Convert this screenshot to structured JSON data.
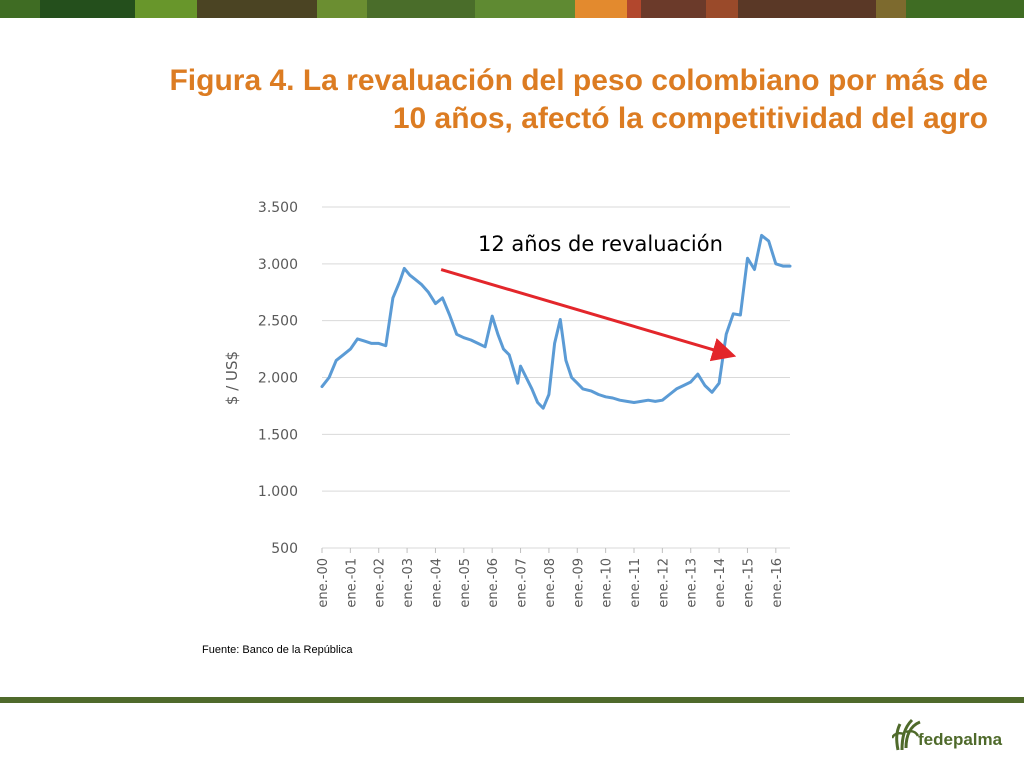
{
  "title_lines": [
    "Figura 4. La revaluación del peso colombiano por más de",
    "10 años, afectó la competitividad del agro"
  ],
  "source": "Fuente: Banco de la República",
  "brand": {
    "name": "fedepalma",
    "color": "#4f6a2b"
  },
  "colors": {
    "title": "#dc7c22",
    "line": "#5b9bd5",
    "arrow": "#e3262b",
    "stripes": [
      "#3f6c23",
      "#244f1c",
      "#68962b",
      "#4b4423",
      "#6b8e31",
      "#4a6d2a",
      "#5f8a32",
      "#e38a2e",
      "#b2472d",
      "#6b3a2a",
      "#9a4a2a",
      "#5a3826",
      "#7d6a2e"
    ]
  },
  "chart_data": {
    "type": "line",
    "title": "",
    "xlabel": "",
    "ylabel": "$ / US$",
    "ylim": [
      500,
      3500
    ],
    "yticks": [
      500,
      1000,
      1500,
      2000,
      2500,
      3000,
      3500
    ],
    "ytick_labels": [
      "500",
      "1.000",
      "1.500",
      "2.000",
      "2.500",
      "3.000",
      "3.500"
    ],
    "xtick_labels": [
      "ene.-00",
      "ene.-01",
      "ene.-02",
      "ene.-03",
      "ene.-04",
      "ene.-05",
      "ene.-06",
      "ene.-07",
      "ene.-08",
      "ene.-09",
      "ene.-10",
      "ene.-11",
      "ene.-12",
      "ene.-13",
      "ene.-14",
      "ene.-15",
      "ene.-16"
    ],
    "grid": true,
    "annotation": {
      "text": "12 años de revaluación",
      "arrow_from": [
        2004.2,
        2950
      ],
      "arrow_to": [
        2014.4,
        2200
      ]
    },
    "series": [
      {
        "x": [
          2000.0,
          2000.25,
          2000.5,
          2000.75,
          2001.0,
          2001.25,
          2001.5,
          2001.75,
          2002.0,
          2002.25,
          2002.5,
          2002.75,
          2002.9,
          2003.1,
          2003.25,
          2003.5,
          2003.75,
          2004.0,
          2004.25,
          2004.5,
          2004.75,
          2005.0,
          2005.25,
          2005.5,
          2005.75,
          2006.0,
          2006.2,
          2006.4,
          2006.6,
          2006.9,
          2007.0,
          2007.2,
          2007.4,
          2007.6,
          2007.8,
          2008.0,
          2008.2,
          2008.4,
          2008.6,
          2008.8,
          2009.0,
          2009.2,
          2009.5,
          2009.75,
          2010.0,
          2010.25,
          2010.5,
          2010.75,
          2011.0,
          2011.25,
          2011.5,
          2011.75,
          2012.0,
          2012.25,
          2012.5,
          2012.75,
          2013.0,
          2013.25,
          2013.5,
          2013.75,
          2014.0,
          2014.25,
          2014.5,
          2014.75,
          2015.0,
          2015.25,
          2015.5,
          2015.75,
          2016.0,
          2016.25,
          2016.5
        ],
        "y": [
          1920,
          2000,
          2150,
          2200,
          2250,
          2340,
          2320,
          2300,
          2300,
          2280,
          2700,
          2850,
          2960,
          2900,
          2870,
          2820,
          2750,
          2650,
          2700,
          2550,
          2380,
          2350,
          2330,
          2300,
          2270,
          2540,
          2380,
          2250,
          2200,
          1950,
          2100,
          2000,
          1900,
          1780,
          1730,
          1850,
          2300,
          2510,
          2150,
          2000,
          1950,
          1900,
          1880,
          1850,
          1830,
          1820,
          1800,
          1790,
          1780,
          1790,
          1800,
          1790,
          1800,
          1850,
          1900,
          1930,
          1960,
          2030,
          1930,
          1870,
          1950,
          2380,
          2560,
          2550,
          3050,
          2950,
          3250,
          3200,
          3000,
          2980,
          2980
        ]
      }
    ]
  }
}
